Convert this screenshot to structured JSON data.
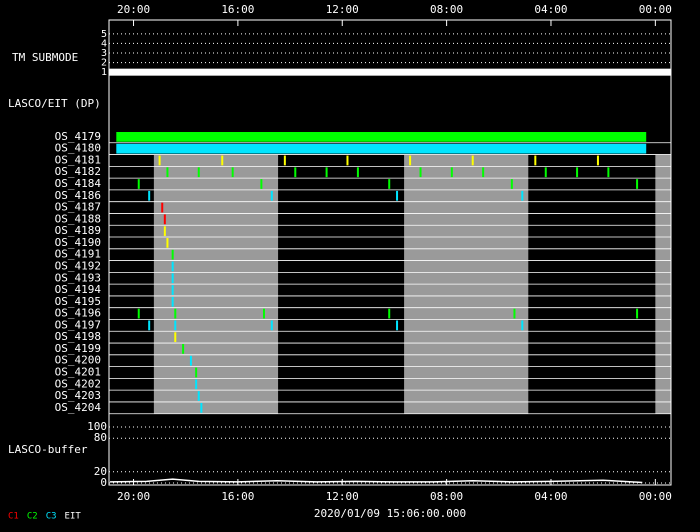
{
  "chart_data": {
    "type": "timeline",
    "xlim": [
      20.94,
      -0.6
    ],
    "xticks": [
      {
        "value": 20,
        "label": "20:00"
      },
      {
        "value": 16,
        "label": "16:00"
      },
      {
        "value": 12,
        "label": "12:00"
      },
      {
        "value": 8,
        "label": "08:00"
      },
      {
        "value": 4,
        "label": "04:00"
      },
      {
        "value": 0,
        "label": "00:00"
      }
    ],
    "timestamp": "2020/01/09 15:06:00.000",
    "submode": {
      "label": "TM SUBMODE",
      "ylim": [
        0.6,
        5.4
      ],
      "yticks": [
        1,
        2,
        3,
        4,
        5
      ],
      "spans": [
        {
          "start": 20.94,
          "end": -0.6,
          "value": 1
        }
      ]
    },
    "dp": {
      "label": "LASCO/EIT (DP)",
      "shading": [
        [
          19.22,
          14.46
        ],
        [
          9.63,
          4.87
        ],
        [
          0,
          -0.6
        ]
      ],
      "rows": [
        {
          "name": "OS_4179",
          "color": "#00ff00",
          "spans": [
            [
              20.66,
              0.35
            ]
          ]
        },
        {
          "name": "OS_4180",
          "color": "#00e5ff",
          "spans": [
            [
              20.66,
              0.35
            ]
          ]
        },
        {
          "name": "OS_4181",
          "color": "#ffff00",
          "x": [
            19.0,
            16.6,
            14.2,
            11.8,
            9.4,
            7.0,
            4.6,
            2.2
          ]
        },
        {
          "name": "OS_4182",
          "color": "#00ff00",
          "x": [
            18.7,
            17.5,
            16.2,
            13.8,
            12.6,
            11.4,
            9.0,
            7.8,
            6.6,
            4.2,
            3.0,
            1.8
          ]
        },
        {
          "name": "OS_4184",
          "color": "#00ff00",
          "x": [
            19.8,
            15.1,
            10.2,
            5.5,
            0.7
          ]
        },
        {
          "name": "OS_4186",
          "color": "#00e5ff",
          "x": [
            19.4,
            14.7,
            9.9,
            5.1
          ]
        },
        {
          "name": "OS_4187",
          "color": "#ff0000",
          "x": [
            18.9
          ]
        },
        {
          "name": "OS_4188",
          "color": "#ff0000",
          "x": [
            18.8
          ]
        },
        {
          "name": "OS_4189",
          "color": "#ffff00",
          "x": [
            18.8
          ]
        },
        {
          "name": "OS_4190",
          "color": "#ffff00",
          "x": [
            18.7
          ]
        },
        {
          "name": "OS_4191",
          "color": "#00ff00",
          "x": [
            18.5
          ]
        },
        {
          "name": "OS_4192",
          "color": "#00e5ff",
          "x": [
            18.5
          ]
        },
        {
          "name": "OS_4193",
          "color": "#00e5ff",
          "x": [
            18.5
          ]
        },
        {
          "name": "OS_4194",
          "color": "#00e5ff",
          "x": [
            18.5
          ]
        },
        {
          "name": "OS_4195",
          "color": "#00e5ff",
          "x": [
            18.5
          ]
        },
        {
          "name": "OS_4196",
          "color": "#00ff00",
          "x": [
            19.8,
            18.4,
            15.0,
            10.2,
            5.4,
            0.7
          ]
        },
        {
          "name": "OS_4197",
          "color": "#00e5ff",
          "x": [
            19.4,
            18.4,
            14.7,
            9.9,
            5.1
          ]
        },
        {
          "name": "OS_4198",
          "color": "#ffff00",
          "x": [
            18.4
          ]
        },
        {
          "name": "OS_4199",
          "color": "#00ff00",
          "x": [
            18.1
          ]
        },
        {
          "name": "OS_4200",
          "color": "#00e5ff",
          "x": [
            17.8
          ]
        },
        {
          "name": "OS_4201",
          "color": "#00ff00",
          "x": [
            17.6
          ]
        },
        {
          "name": "OS_4202",
          "color": "#00e5ff",
          "x": [
            17.6
          ]
        },
        {
          "name": "OS_4203",
          "color": "#00e5ff",
          "x": [
            17.5
          ]
        },
        {
          "name": "OS_4204",
          "color": "#00e5ff",
          "x": [
            17.4
          ]
        }
      ]
    },
    "buffer": {
      "label": "LASCO-buffer",
      "color": "#ffffff",
      "ylim": [
        0,
        100
      ],
      "yticks": [
        0,
        20,
        80,
        100
      ],
      "x": [
        20.9,
        19.5,
        18.5,
        17.5,
        16.0,
        14.5,
        13.0,
        11.5,
        10.0,
        8.5,
        7.0,
        5.5,
        4.0,
        2.0,
        0.5
      ],
      "values": [
        2,
        3,
        7,
        3,
        2,
        4,
        2,
        3,
        2,
        2,
        4,
        2,
        3,
        5,
        1
      ]
    },
    "legend": [
      {
        "name": "C1",
        "color": "#ff0000"
      },
      {
        "name": "C2",
        "color": "#00ff00"
      },
      {
        "name": "C3",
        "color": "#00e5ff"
      },
      {
        "name": "EIT",
        "color": "#ffffff"
      }
    ]
  }
}
